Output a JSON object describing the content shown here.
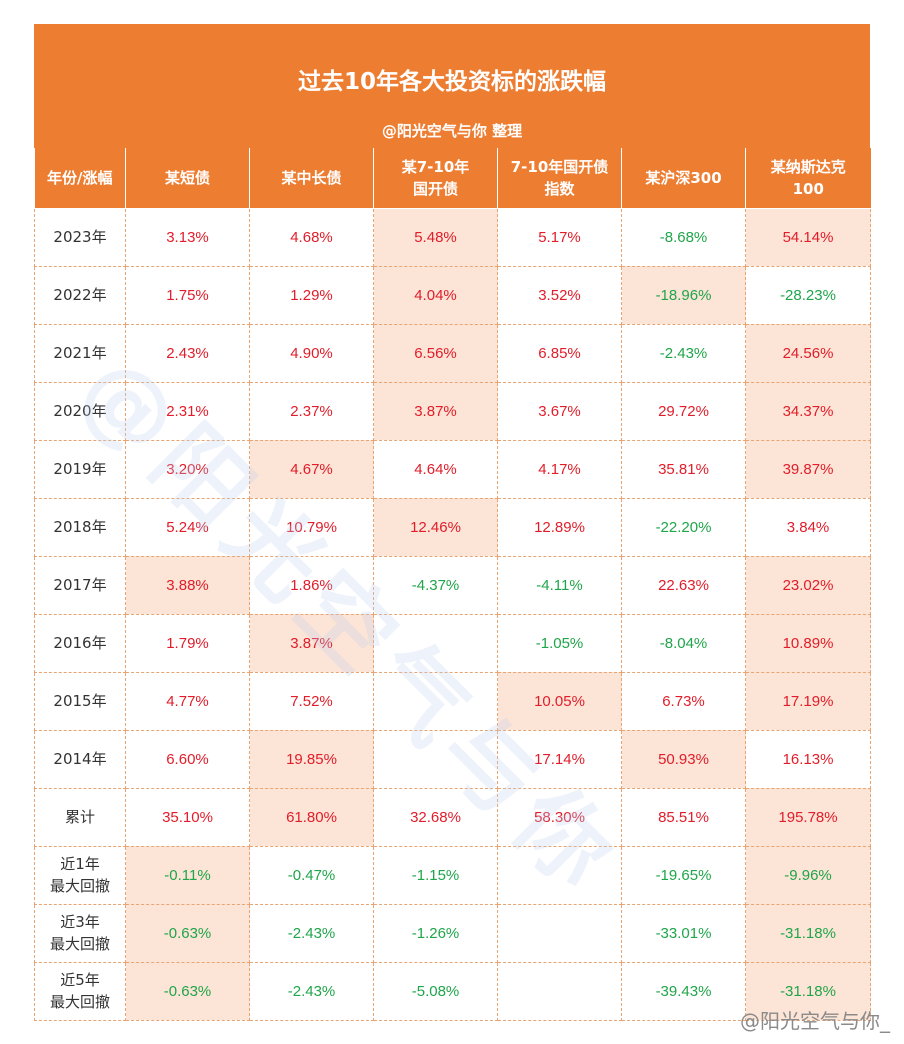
{
  "title": "过去10年各大投资标的涨跌幅",
  "subtitle": "@阳光空气与你 整理",
  "columns": [
    "年份/涨幅",
    "某短债",
    "某中长债",
    "某7-10年\n国开债",
    "7-10年国开债\n指数",
    "某沪深300",
    "某纳斯达克\n100"
  ],
  "rows": [
    {
      "label": "2023年",
      "cells": [
        {
          "v": "3.13%",
          "neg": false,
          "hl": false
        },
        {
          "v": "4.68%",
          "neg": false,
          "hl": false
        },
        {
          "v": "5.48%",
          "neg": false,
          "hl": true
        },
        {
          "v": "5.17%",
          "neg": false,
          "hl": false
        },
        {
          "v": "-8.68%",
          "neg": true,
          "hl": false
        },
        {
          "v": "54.14%",
          "neg": false,
          "hl": true
        }
      ]
    },
    {
      "label": "2022年",
      "cells": [
        {
          "v": "1.75%",
          "neg": false,
          "hl": false
        },
        {
          "v": "1.29%",
          "neg": false,
          "hl": false
        },
        {
          "v": "4.04%",
          "neg": false,
          "hl": true
        },
        {
          "v": "3.52%",
          "neg": false,
          "hl": false
        },
        {
          "v": "-18.96%",
          "neg": true,
          "hl": true
        },
        {
          "v": "-28.23%",
          "neg": true,
          "hl": false
        }
      ]
    },
    {
      "label": "2021年",
      "cells": [
        {
          "v": "2.43%",
          "neg": false,
          "hl": false
        },
        {
          "v": "4.90%",
          "neg": false,
          "hl": false
        },
        {
          "v": "6.56%",
          "neg": false,
          "hl": true
        },
        {
          "v": "6.85%",
          "neg": false,
          "hl": false
        },
        {
          "v": "-2.43%",
          "neg": true,
          "hl": false
        },
        {
          "v": "24.56%",
          "neg": false,
          "hl": true
        }
      ]
    },
    {
      "label": "2020年",
      "cells": [
        {
          "v": "2.31%",
          "neg": false,
          "hl": false
        },
        {
          "v": "2.37%",
          "neg": false,
          "hl": false
        },
        {
          "v": "3.87%",
          "neg": false,
          "hl": true
        },
        {
          "v": "3.67%",
          "neg": false,
          "hl": false
        },
        {
          "v": "29.72%",
          "neg": false,
          "hl": false
        },
        {
          "v": "34.37%",
          "neg": false,
          "hl": true
        }
      ]
    },
    {
      "label": "2019年",
      "cells": [
        {
          "v": "3.20%",
          "neg": false,
          "hl": false
        },
        {
          "v": "4.67%",
          "neg": false,
          "hl": true
        },
        {
          "v": "4.64%",
          "neg": false,
          "hl": false
        },
        {
          "v": "4.17%",
          "neg": false,
          "hl": false
        },
        {
          "v": "35.81%",
          "neg": false,
          "hl": false
        },
        {
          "v": "39.87%",
          "neg": false,
          "hl": true
        }
      ]
    },
    {
      "label": "2018年",
      "cells": [
        {
          "v": "5.24%",
          "neg": false,
          "hl": false
        },
        {
          "v": "10.79%",
          "neg": false,
          "hl": false
        },
        {
          "v": "12.46%",
          "neg": false,
          "hl": true
        },
        {
          "v": "12.89%",
          "neg": false,
          "hl": false
        },
        {
          "v": "-22.20%",
          "neg": true,
          "hl": false
        },
        {
          "v": "3.84%",
          "neg": false,
          "hl": false
        }
      ]
    },
    {
      "label": "2017年",
      "cells": [
        {
          "v": "3.88%",
          "neg": false,
          "hl": true
        },
        {
          "v": "1.86%",
          "neg": false,
          "hl": false
        },
        {
          "v": "-4.37%",
          "neg": true,
          "hl": false
        },
        {
          "v": "-4.11%",
          "neg": true,
          "hl": false
        },
        {
          "v": "22.63%",
          "neg": false,
          "hl": false
        },
        {
          "v": "23.02%",
          "neg": false,
          "hl": true
        }
      ]
    },
    {
      "label": "2016年",
      "cells": [
        {
          "v": "1.79%",
          "neg": false,
          "hl": false
        },
        {
          "v": "3.87%",
          "neg": false,
          "hl": true
        },
        {
          "v": "",
          "neg": false,
          "hl": false
        },
        {
          "v": "-1.05%",
          "neg": true,
          "hl": false
        },
        {
          "v": "-8.04%",
          "neg": true,
          "hl": false
        },
        {
          "v": "10.89%",
          "neg": false,
          "hl": true
        }
      ]
    },
    {
      "label": "2015年",
      "cells": [
        {
          "v": "4.77%",
          "neg": false,
          "hl": false
        },
        {
          "v": "7.52%",
          "neg": false,
          "hl": false
        },
        {
          "v": "",
          "neg": false,
          "hl": false
        },
        {
          "v": "10.05%",
          "neg": false,
          "hl": true
        },
        {
          "v": "6.73%",
          "neg": false,
          "hl": false
        },
        {
          "v": "17.19%",
          "neg": false,
          "hl": true
        }
      ]
    },
    {
      "label": "2014年",
      "cells": [
        {
          "v": "6.60%",
          "neg": false,
          "hl": false
        },
        {
          "v": "19.85%",
          "neg": false,
          "hl": true
        },
        {
          "v": "",
          "neg": false,
          "hl": false
        },
        {
          "v": "17.14%",
          "neg": false,
          "hl": false
        },
        {
          "v": "50.93%",
          "neg": false,
          "hl": true
        },
        {
          "v": "16.13%",
          "neg": false,
          "hl": false
        }
      ]
    },
    {
      "label": "累计",
      "cells": [
        {
          "v": "35.10%",
          "neg": false,
          "hl": false
        },
        {
          "v": "61.80%",
          "neg": false,
          "hl": true
        },
        {
          "v": "32.68%",
          "neg": false,
          "hl": false
        },
        {
          "v": "58.30%",
          "neg": false,
          "hl": false
        },
        {
          "v": "85.51%",
          "neg": false,
          "hl": false
        },
        {
          "v": "195.78%",
          "neg": false,
          "hl": true
        }
      ]
    },
    {
      "label": "近1年\n最大回撤",
      "cells": [
        {
          "v": "-0.11%",
          "neg": true,
          "hl": true
        },
        {
          "v": "-0.47%",
          "neg": true,
          "hl": false
        },
        {
          "v": "-1.15%",
          "neg": true,
          "hl": false
        },
        {
          "v": "",
          "neg": false,
          "hl": false
        },
        {
          "v": "-19.65%",
          "neg": true,
          "hl": false
        },
        {
          "v": "-9.96%",
          "neg": true,
          "hl": true
        }
      ]
    },
    {
      "label": "近3年\n最大回撤",
      "cells": [
        {
          "v": "-0.63%",
          "neg": true,
          "hl": true
        },
        {
          "v": "-2.43%",
          "neg": true,
          "hl": false
        },
        {
          "v": "-1.26%",
          "neg": true,
          "hl": false
        },
        {
          "v": "",
          "neg": false,
          "hl": false
        },
        {
          "v": "-33.01%",
          "neg": true,
          "hl": false
        },
        {
          "v": "-31.18%",
          "neg": true,
          "hl": true
        }
      ]
    },
    {
      "label": "近5年\n最大回撤",
      "cells": [
        {
          "v": "-0.63%",
          "neg": true,
          "hl": true
        },
        {
          "v": "-2.43%",
          "neg": true,
          "hl": false
        },
        {
          "v": "-5.08%",
          "neg": true,
          "hl": false
        },
        {
          "v": "",
          "neg": false,
          "hl": false
        },
        {
          "v": "-39.43%",
          "neg": true,
          "hl": false
        },
        {
          "v": "-31.18%",
          "neg": true,
          "hl": true
        }
      ]
    }
  ],
  "watermark": "@阳光空气与你",
  "credit": "@阳光空气与你_",
  "colors": {
    "header": "#ED7D31",
    "positive": "#e11d2a",
    "negative": "#1fa54a",
    "highlight": "#FCE4D6"
  }
}
